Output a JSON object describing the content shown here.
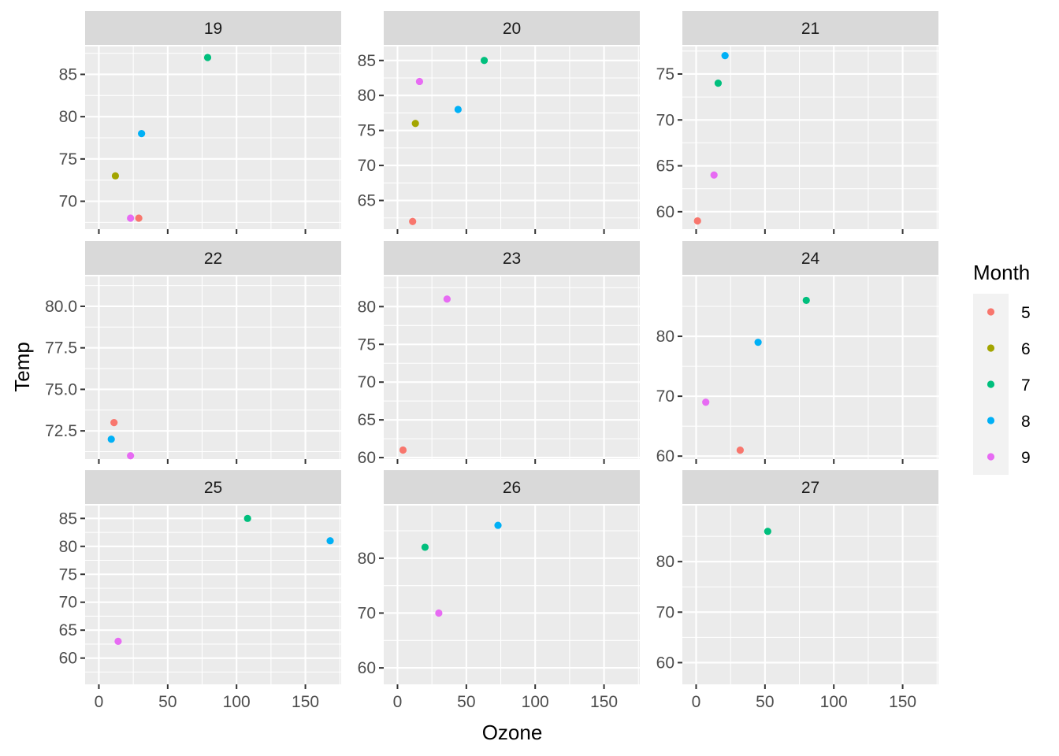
{
  "chart_data": {
    "type": "scatter",
    "facet_by": "Day",
    "xlabel": "Ozone",
    "ylabel": "Temp",
    "legend": {
      "title": "Month",
      "placement": "right",
      "entries": [
        "5",
        "6",
        "7",
        "8",
        "9"
      ],
      "colors": [
        "#F8766D",
        "#A3A500",
        "#00BF7D",
        "#00B0F6",
        "#E76BF3"
      ]
    },
    "xlim": [
      -10,
      176
    ],
    "xticks": [
      0,
      50,
      100,
      150
    ],
    "grid": true,
    "panels": [
      {
        "label": "19",
        "ylim": [
          66.7,
          88.3
        ],
        "yticks": [
          70,
          75,
          80,
          85
        ],
        "points": [
          {
            "x": 29,
            "y": 68,
            "month": "5"
          },
          {
            "x": 12,
            "y": 73,
            "month": "6"
          },
          {
            "x": 79,
            "y": 87,
            "month": "7"
          },
          {
            "x": 31,
            "y": 78,
            "month": "8"
          },
          {
            "x": 23,
            "y": 68,
            "month": "9"
          }
        ]
      },
      {
        "label": "20",
        "ylim": [
          60.9,
          87.0
        ],
        "yticks": [
          65,
          70,
          75,
          80,
          85
        ],
        "points": [
          {
            "x": 11,
            "y": 62,
            "month": "5"
          },
          {
            "x": 13,
            "y": 76,
            "month": "6"
          },
          {
            "x": 63,
            "y": 85,
            "month": "7"
          },
          {
            "x": 44,
            "y": 78,
            "month": "8"
          },
          {
            "x": 16,
            "y": 82,
            "month": "9"
          }
        ]
      },
      {
        "label": "21",
        "ylim": [
          58.1,
          78.0
        ],
        "yticks": [
          60,
          65,
          70,
          75
        ],
        "points": [
          {
            "x": 1,
            "y": 59,
            "month": "5"
          },
          {
            "x": 16,
            "y": 74,
            "month": "7"
          },
          {
            "x": 21,
            "y": 77,
            "month": "8"
          },
          {
            "x": 13,
            "y": 64,
            "month": "9"
          }
        ]
      },
      {
        "label": "22",
        "ylim": [
          70.8,
          81.8
        ],
        "yticks": [
          72.5,
          75.0,
          77.5,
          80.0
        ],
        "points": [
          {
            "x": 11,
            "y": 73,
            "month": "5"
          },
          {
            "x": 9,
            "y": 72,
            "month": "8"
          },
          {
            "x": 23,
            "y": 71,
            "month": "9"
          }
        ]
      },
      {
        "label": "23",
        "ylim": [
          59.8,
          84.0
        ],
        "yticks": [
          60,
          65,
          70,
          75,
          80
        ],
        "points": [
          {
            "x": 4,
            "y": 61,
            "month": "5"
          },
          {
            "x": 36,
            "y": 81,
            "month": "9"
          }
        ]
      },
      {
        "label": "24",
        "ylim": [
          59.5,
          90.0
        ],
        "yticks": [
          60,
          70,
          80
        ],
        "points": [
          {
            "x": 32,
            "y": 61,
            "month": "5"
          },
          {
            "x": 80,
            "y": 86,
            "month": "7"
          },
          {
            "x": 45,
            "y": 79,
            "month": "8"
          },
          {
            "x": 7,
            "y": 69,
            "month": "9"
          }
        ]
      },
      {
        "label": "25",
        "ylim": [
          55.3,
          87.3
        ],
        "yticks": [
          60,
          65,
          70,
          75,
          80,
          85
        ],
        "points": [
          {
            "x": 108,
            "y": 85,
            "month": "7"
          },
          {
            "x": 168,
            "y": 81,
            "month": "8"
          },
          {
            "x": 14,
            "y": 63,
            "month": "9"
          }
        ]
      },
      {
        "label": "26",
        "ylim": [
          57.0,
          89.6
        ],
        "yticks": [
          60,
          70,
          80
        ],
        "points": [
          {
            "x": 20,
            "y": 82,
            "month": "7"
          },
          {
            "x": 73,
            "y": 86,
            "month": "8"
          },
          {
            "x": 30,
            "y": 70,
            "month": "9"
          }
        ]
      },
      {
        "label": "27",
        "ylim": [
          55.7,
          91.1
        ],
        "yticks": [
          60,
          70,
          80
        ],
        "points": [
          {
            "x": 52,
            "y": 86,
            "month": "7"
          }
        ]
      }
    ]
  }
}
